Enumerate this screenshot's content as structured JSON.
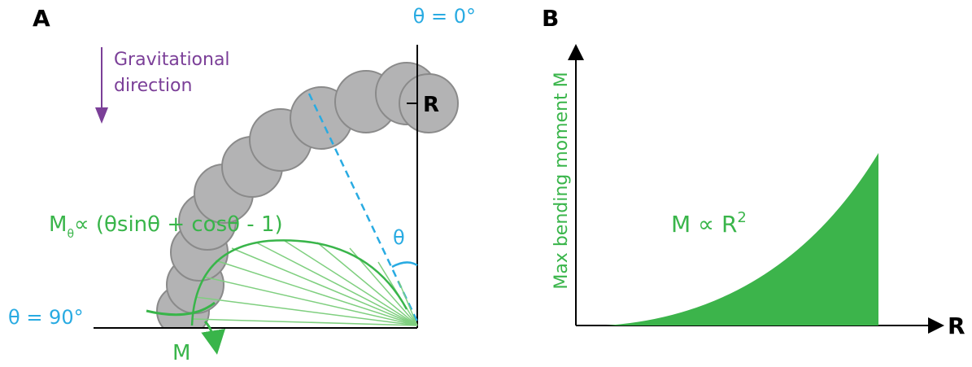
{
  "panel_a": {
    "label": "A",
    "theta_zero": "θ = 0°",
    "gravity": [
      "Gravitational",
      "direction"
    ],
    "radius": "R",
    "formula": {
      "main": "M",
      "sub": "θ",
      "rest": "∝ (θsinθ + cosθ - 1)"
    },
    "theta": "θ",
    "theta_ninety": "θ = 90°",
    "moment": "M"
  },
  "panel_b": {
    "label": "B",
    "y_axis": "Max bending moment M",
    "relation": {
      "main": "M ∝ R",
      "sup": "2"
    },
    "x_axis": "R"
  }
}
